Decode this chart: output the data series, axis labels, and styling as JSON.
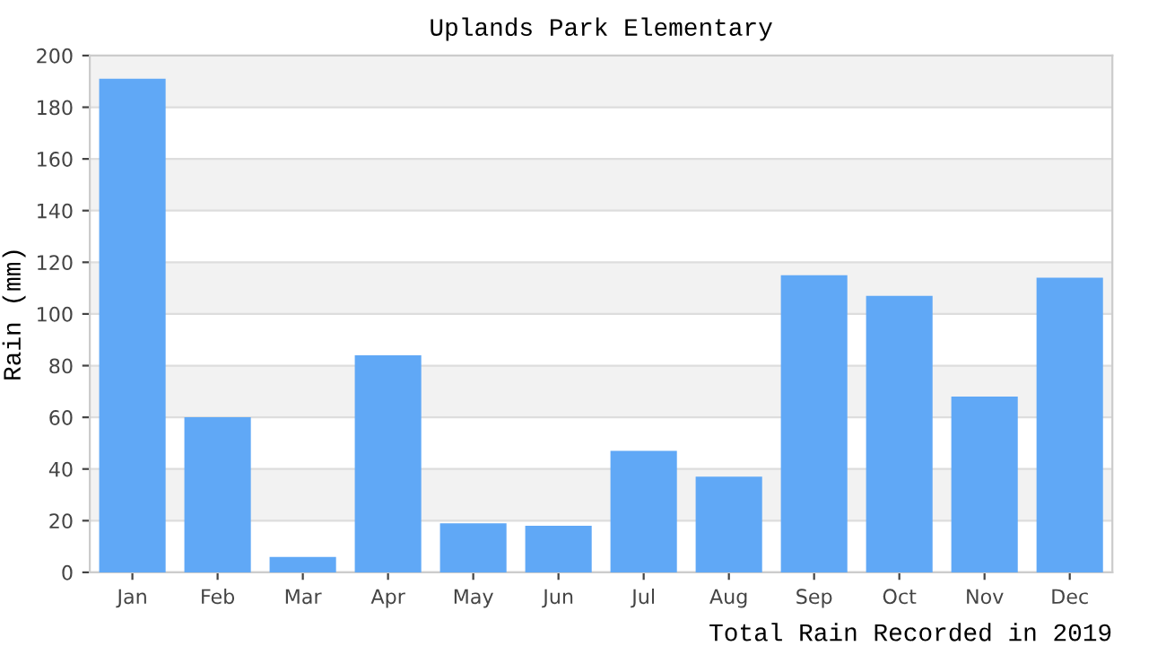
{
  "chart_data": {
    "type": "bar",
    "title": "Uplands Park Elementary",
    "ylabel": "Rain (mm)",
    "xlabel": "Total Rain Recorded in 2019",
    "categories": [
      "Jan",
      "Feb",
      "Mar",
      "Apr",
      "May",
      "Jun",
      "Jul",
      "Aug",
      "Sep",
      "Oct",
      "Nov",
      "Dec"
    ],
    "values": [
      191,
      60,
      6,
      84,
      19,
      18,
      47,
      37,
      115,
      107,
      68,
      114
    ],
    "color": "#60a8f6",
    "ylim": [
      0,
      200
    ],
    "yticks": [
      0,
      20,
      40,
      60,
      80,
      100,
      120,
      140,
      160,
      180,
      200
    ],
    "grid": "y"
  }
}
